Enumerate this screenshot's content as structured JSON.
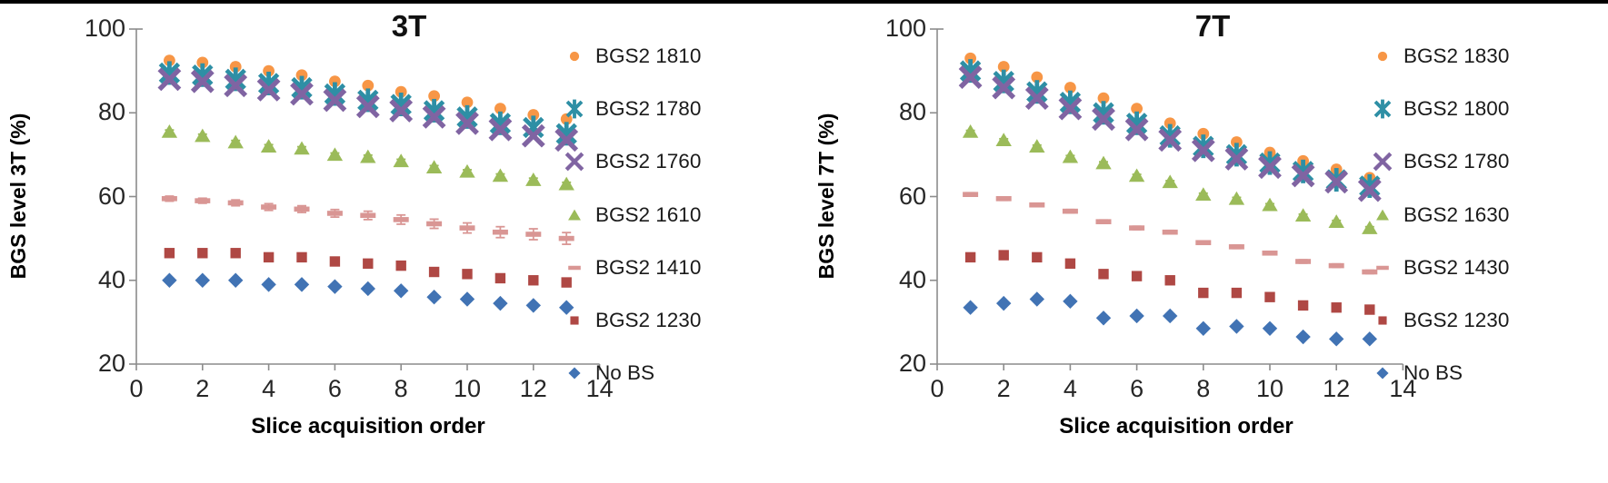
{
  "page": {
    "top_border_color": "#000000",
    "background_color": "#ffffff",
    "axis_color": "#8C8C8C"
  },
  "chart_data": [
    {
      "type": "scatter",
      "title": "3T",
      "xlabel": "Slice acquisition order",
      "ylabel": "BGS level 3T (%)",
      "xlim": [
        0,
        14
      ],
      "ylim": [
        20,
        100
      ],
      "x_ticks": [
        0,
        2,
        4,
        6,
        8,
        10,
        12,
        14
      ],
      "y_ticks": [
        20,
        40,
        60,
        80,
        100
      ],
      "grid": false,
      "legend_position": "right",
      "x": [
        1,
        2,
        3,
        4,
        5,
        6,
        7,
        8,
        9,
        10,
        11,
        12,
        13
      ],
      "series": [
        {
          "name": "BGS2 1810",
          "marker": "circle",
          "color": "#F79646",
          "values": [
            92.5,
            92,
            91,
            90,
            89,
            87.5,
            86.5,
            85,
            84,
            82.5,
            81,
            79.5,
            78.5
          ]
        },
        {
          "name": "BGS2 1780",
          "marker": "star-x",
          "color": "#2E8FA5",
          "values": [
            89.5,
            89,
            88,
            87,
            86,
            84.5,
            83,
            82,
            80.5,
            79,
            77.5,
            76.5,
            75
          ]
        },
        {
          "name": "BGS2 1760",
          "marker": "x",
          "color": "#8064A2",
          "values": [
            88,
            87.5,
            86.5,
            85.5,
            84.5,
            83,
            81.5,
            80.5,
            79,
            77.5,
            76,
            74.5,
            73.5
          ]
        },
        {
          "name": "BGS2 1610",
          "marker": "triangle",
          "color": "#9BBB59",
          "values": [
            75.5,
            74.5,
            73,
            72,
            71.5,
            70,
            69.5,
            68.5,
            67,
            66,
            65,
            64,
            63
          ],
          "errors": 0.4
        },
        {
          "name": "BGS2 1410",
          "marker": "dash",
          "color": "#D99694",
          "values": [
            59.5,
            59,
            58.5,
            57.5,
            57,
            56,
            55.5,
            54.5,
            53.5,
            52.5,
            51.5,
            51,
            50
          ],
          "errors": [
            0.6,
            0.6,
            0.7,
            0.8,
            0.8,
            0.9,
            1.0,
            1.1,
            1.1,
            1.2,
            1.3,
            1.3,
            1.4
          ]
        },
        {
          "name": "BGS2 1230",
          "marker": "square",
          "color": "#AF4844",
          "values": [
            46.5,
            46.5,
            46.5,
            45.5,
            45.5,
            44.5,
            44,
            43.5,
            42,
            41.5,
            40.5,
            40,
            39.5
          ],
          "errors": [
            0.3,
            0.3,
            0.3,
            0.4,
            0.4,
            0.5,
            0.9,
            0.9,
            0.8,
            0.6,
            0.5,
            0.9,
            1.0
          ]
        },
        {
          "name": "No BS",
          "marker": "diamond",
          "color": "#4173B4",
          "values": [
            40,
            40,
            40,
            39,
            39,
            38.5,
            38,
            37.5,
            36,
            35.5,
            34.5,
            34,
            33.5
          ],
          "errors": 0.5
        }
      ]
    },
    {
      "type": "scatter",
      "title": "7T",
      "xlabel": "Slice acquisition order",
      "ylabel": "BGS level 7T (%)",
      "xlim": [
        0,
        14
      ],
      "ylim": [
        20,
        100
      ],
      "x_ticks": [
        0,
        2,
        4,
        6,
        8,
        10,
        12,
        14
      ],
      "y_ticks": [
        20,
        40,
        60,
        80,
        100
      ],
      "grid": false,
      "legend_position": "right",
      "x": [
        1,
        2,
        3,
        4,
        5,
        6,
        7,
        8,
        9,
        10,
        11,
        12,
        13
      ],
      "series": [
        {
          "name": "BGS2 1830",
          "marker": "circle",
          "color": "#F79646",
          "values": [
            93,
            91,
            88.5,
            86,
            83.5,
            81,
            77.5,
            75,
            73,
            70.5,
            68.5,
            66.5,
            64.5
          ]
        },
        {
          "name": "BGS2 1800",
          "marker": "star-x",
          "color": "#2E8FA5",
          "values": [
            90,
            87.5,
            85,
            82.5,
            80,
            77.5,
            74.5,
            72,
            70,
            68,
            66,
            64,
            62.5
          ]
        },
        {
          "name": "BGS2 1780",
          "marker": "x",
          "color": "#8064A2",
          "values": [
            88.5,
            86,
            83.5,
            81,
            78.5,
            76,
            73.5,
            71,
            69,
            67,
            65,
            63.5,
            61.5
          ]
        },
        {
          "name": "BGS2 1630",
          "marker": "triangle",
          "color": "#9BBB59",
          "values": [
            75.5,
            73.5,
            72,
            69.5,
            68,
            65,
            63.5,
            60.5,
            59.5,
            58,
            55.5,
            54,
            52.5
          ],
          "errors": 0.3
        },
        {
          "name": "BGS2 1430",
          "marker": "dash",
          "color": "#D99694",
          "values": [
            60.5,
            59.5,
            58,
            56.5,
            54,
            52.5,
            51.5,
            49,
            48,
            46.5,
            44.5,
            43.5,
            42
          ],
          "errors": 0.4
        },
        {
          "name": "BGS2 1230",
          "marker": "square",
          "color": "#AF4844",
          "values": [
            45.5,
            46,
            45.5,
            44,
            41.5,
            41,
            40,
            37,
            37,
            36,
            34,
            33.5,
            33
          ],
          "errors": 0.3
        },
        {
          "name": "No BS",
          "marker": "diamond",
          "color": "#4173B4",
          "values": [
            33.5,
            34.5,
            35.5,
            35,
            31,
            31.5,
            31.5,
            28.5,
            29,
            28.5,
            26.5,
            26,
            26
          ],
          "errors": 0.3
        }
      ]
    }
  ]
}
